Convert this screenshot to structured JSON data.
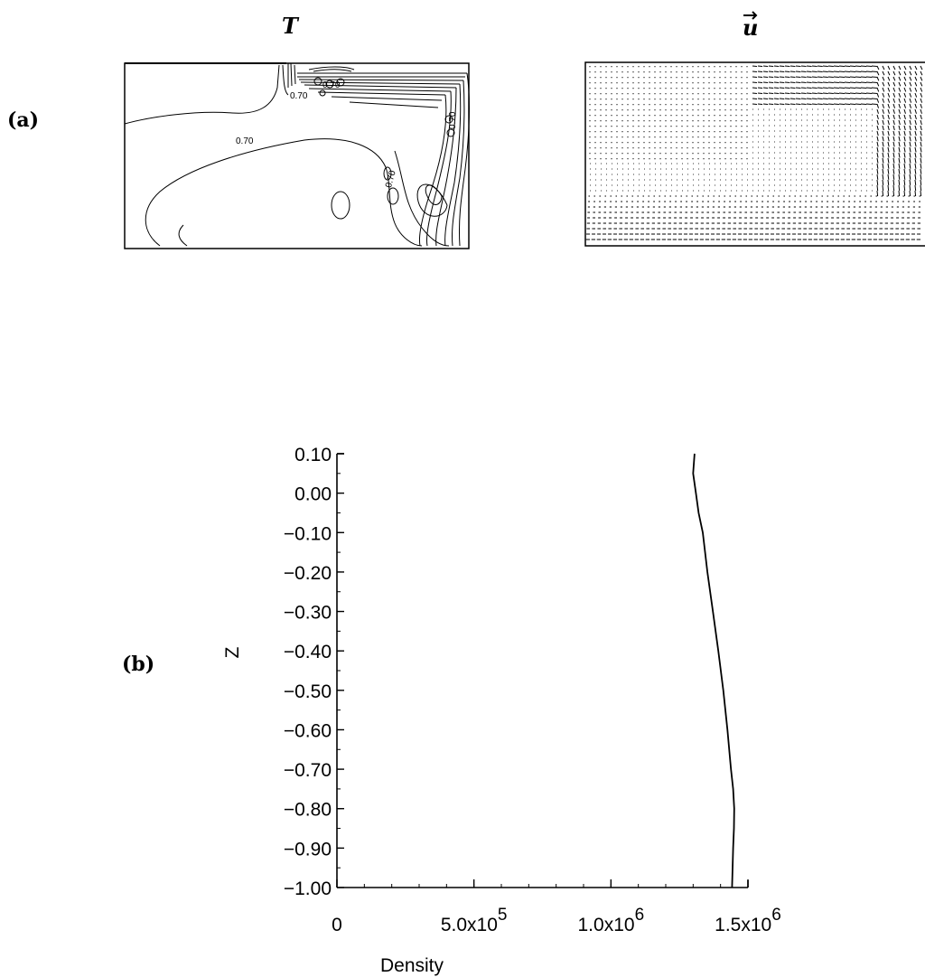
{
  "figure_a": {
    "panel_label": "(a)",
    "left_plot": {
      "title": "T",
      "contour_labels": [
        "0.70",
        "0.70",
        "0.70",
        "0.70",
        "0.70"
      ]
    },
    "right_plot": {
      "title": "u",
      "title_accent": "vector-arrow"
    }
  },
  "figure_b": {
    "panel_label": "(b)"
  },
  "chart_data": {
    "type": "line",
    "xlabel": "Density",
    "ylabel": "Z",
    "xlim": [
      0,
      1500000
    ],
    "ylim": [
      -1.0,
      0.1
    ],
    "x_tick_labels": [
      {
        "value": 0,
        "base": "0",
        "exp": ""
      },
      {
        "value": 500000,
        "base": "5.0x10",
        "exp": "5"
      },
      {
        "value": 1000000,
        "base": "1.0x10",
        "exp": "6"
      },
      {
        "value": 1500000,
        "base": "1.5x10",
        "exp": "6"
      }
    ],
    "y_tick_labels": [
      {
        "value": 0.1,
        "label": "0.10"
      },
      {
        "value": 0.0,
        "label": "0.00"
      },
      {
        "value": -0.1,
        "label": "−0.10"
      },
      {
        "value": -0.2,
        "label": "−0.20"
      },
      {
        "value": -0.3,
        "label": "−0.30"
      },
      {
        "value": -0.4,
        "label": "−0.40"
      },
      {
        "value": -0.5,
        "label": "−0.50"
      },
      {
        "value": -0.6,
        "label": "−0.60"
      },
      {
        "value": -0.7,
        "label": "−0.70"
      },
      {
        "value": -0.8,
        "label": "−0.80"
      },
      {
        "value": -0.9,
        "label": "−0.90"
      },
      {
        "value": -1.0,
        "label": "−1.00"
      }
    ],
    "series": [
      {
        "x": [
          1305000,
          1300000,
          1310000,
          1320000,
          1335000,
          1352000,
          1372000,
          1392000,
          1410000,
          1425000,
          1438000,
          1446000,
          1450000,
          1449000,
          1446000,
          1442000
        ],
        "y": [
          0.1,
          0.05,
          0.0,
          -0.05,
          -0.1,
          -0.2,
          -0.3,
          -0.4,
          -0.5,
          -0.6,
          -0.7,
          -0.75,
          -0.8,
          -0.85,
          -0.9,
          -1.0
        ]
      }
    ]
  }
}
